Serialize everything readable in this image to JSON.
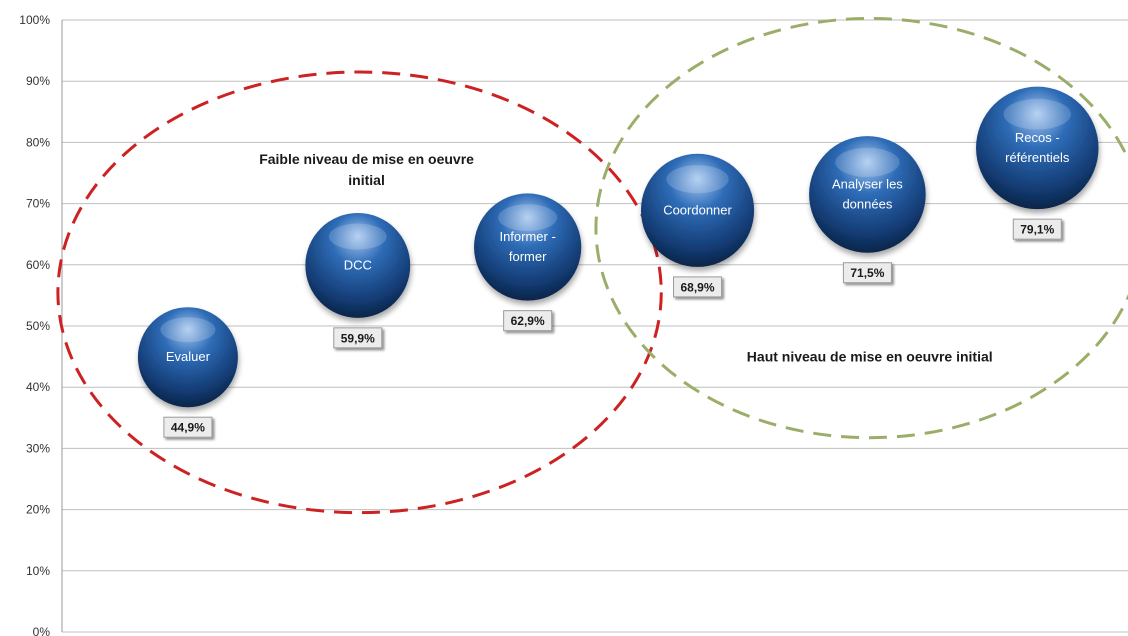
{
  "chart_data": {
    "type": "scatter",
    "variant": "bubble",
    "ylim": [
      0,
      100
    ],
    "y_ticks": [
      "0%",
      "10%",
      "20%",
      "30%",
      "40%",
      "50%",
      "60%",
      "70%",
      "80%",
      "90%",
      "100%"
    ],
    "grid": true,
    "points": [
      {
        "label": "Evaluer",
        "value": 44.9,
        "data_label": "44,9%",
        "size": 1.0
      },
      {
        "label": "DCC",
        "value": 59.9,
        "data_label": "59,9%",
        "size": 1.1
      },
      {
        "label": "Informer - former",
        "value": 62.9,
        "data_label": "62,9%",
        "size": 1.15
      },
      {
        "label": "Coordonner",
        "value": 68.9,
        "data_label": "68,9%",
        "size": 1.28
      },
      {
        "label": "Analyser les données",
        "value": 71.5,
        "data_label": "71,5%",
        "size": 1.36
      },
      {
        "label": "Recos - référentiels",
        "value": 79.1,
        "data_label": "79,1%",
        "size": 1.5
      }
    ],
    "groups": [
      {
        "label": "Faible niveau de mise en oeuvre initial",
        "color": "#cc2222",
        "members": [
          "Evaluer",
          "DCC",
          "Informer - former"
        ]
      },
      {
        "label": "Haut niveau de mise en oeuvre initial",
        "color": "#9aae6a",
        "members": [
          "Coordonner",
          "Analyser les données",
          "Recos - référentiels"
        ]
      }
    ],
    "colors": {
      "bubble_dark": "#0e2f5e",
      "bubble_mid": "#2a66b0",
      "bubble_light": "#a8c8f0",
      "grid": "#bfbfbf"
    }
  }
}
